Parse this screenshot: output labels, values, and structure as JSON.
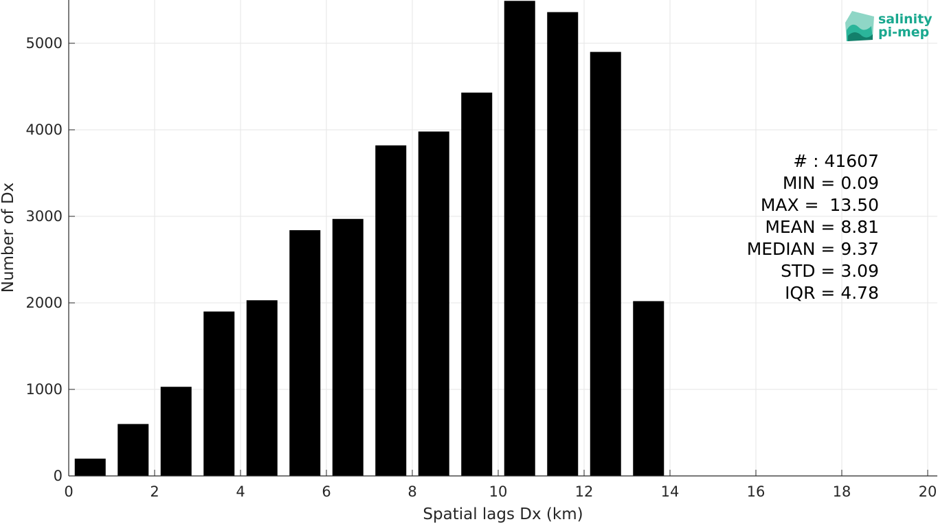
{
  "logo": {
    "line1": "salinity",
    "line2": "pi-mep",
    "color": "#1aa88f"
  },
  "stats": {
    "lines": [
      "# : 41607",
      "MIN = 0.09",
      "MAX =  13.50",
      "MEAN = 8.81",
      "MEDIAN = 9.37",
      "STD = 3.09",
      "IQR = 4.78"
    ]
  },
  "chart_data": {
    "type": "bar",
    "title": "",
    "xlabel": "Spatial lags Dx (km)",
    "ylabel": "Number of Dx",
    "xlim": [
      0,
      20
    ],
    "ylim": [
      0,
      5500
    ],
    "xticks": [
      0,
      2,
      4,
      6,
      8,
      10,
      12,
      14,
      16,
      18,
      20
    ],
    "yticks": [
      0,
      1000,
      2000,
      3000,
      4000,
      5000
    ],
    "grid": true,
    "bar_color": "#000000",
    "bin_width": 1,
    "x": [
      0.5,
      1.5,
      2.5,
      3.5,
      4.5,
      5.5,
      6.5,
      7.5,
      8.5,
      9.5,
      10.5,
      11.5,
      12.5,
      13.5,
      14.5,
      15.5,
      16.5,
      17.5,
      18.5,
      19.5
    ],
    "values": [
      200,
      600,
      1030,
      1900,
      2030,
      2840,
      2970,
      3820,
      3980,
      4430,
      5490,
      5360,
      4900,
      2020,
      0,
      0,
      0,
      0,
      0,
      0
    ]
  }
}
